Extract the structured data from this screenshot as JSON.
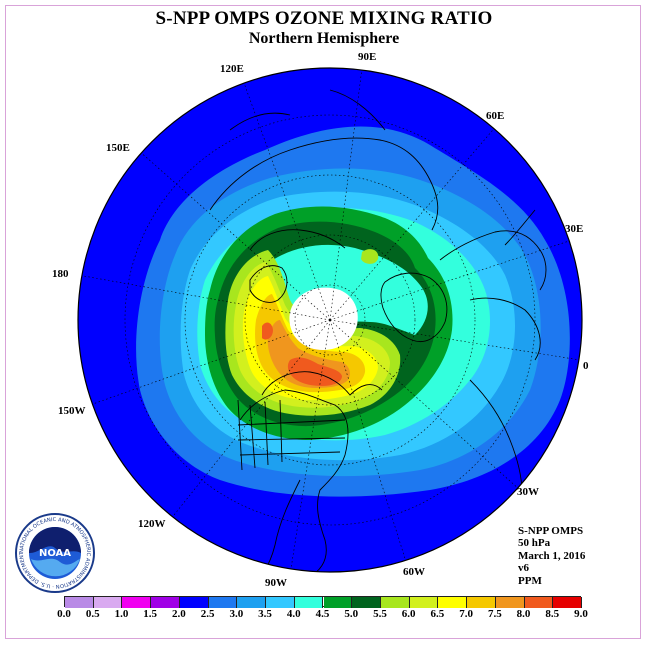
{
  "title": "S-NPP OMPS OZONE MIXING RATIO",
  "subtitle": "Northern Hemisphere",
  "longitude_labels": [
    "90E",
    "60E",
    "30E",
    "0",
    "30W",
    "60W",
    "90W",
    "120W",
    "150W",
    "180",
    "150E",
    "120E"
  ],
  "info": {
    "instrument": "S-NPP OMPS",
    "pressure": "50 hPa",
    "date": "March 1, 2016",
    "version": "v6",
    "units": "PPM"
  },
  "colorbar": {
    "ticks": [
      "0.0",
      "0.5",
      "1.0",
      "1.5",
      "2.0",
      "2.5",
      "3.0",
      "3.5",
      "4.0",
      "4.5",
      "5.0",
      "5.5",
      "6.0",
      "6.5",
      "7.0",
      "7.5",
      "8.0",
      "8.5",
      "9.0"
    ],
    "colors": [
      "#b98ae6",
      "#d9aaf0",
      "#f000f0",
      "#a000e6",
      "#0000ff",
      "#1e78f0",
      "#1ea0f0",
      "#33c8ff",
      "#33ffdd",
      "#00a028",
      "#00641e",
      "#a8e61e",
      "#d2f01e",
      "#ffff00",
      "#f5c800",
      "#f0961e",
      "#f05a1e",
      "#e60000",
      "#8c5a3c"
    ]
  },
  "colors": {
    "blue": "#0000ff",
    "mid_blue": "#1e78f0",
    "light_blue": "#1ea0f0",
    "sky": "#33c8ff",
    "cyan": "#33ffdd",
    "green": "#00a028",
    "dark_green": "#00641e",
    "lime": "#a8e61e",
    "yellow_green": "#d2f01e",
    "yellow": "#ffff00",
    "gold": "#f5c800",
    "orange": "#f0961e",
    "red_orange": "#f05a1e",
    "no_data": "#ffffff"
  },
  "logo": {
    "text": "NOAA",
    "ring_text": "NATIONAL OCEANIC AND ATMOSPHERIC ADMINISTRATION · U.S. DEPARTMENT OF COMMERCE"
  }
}
